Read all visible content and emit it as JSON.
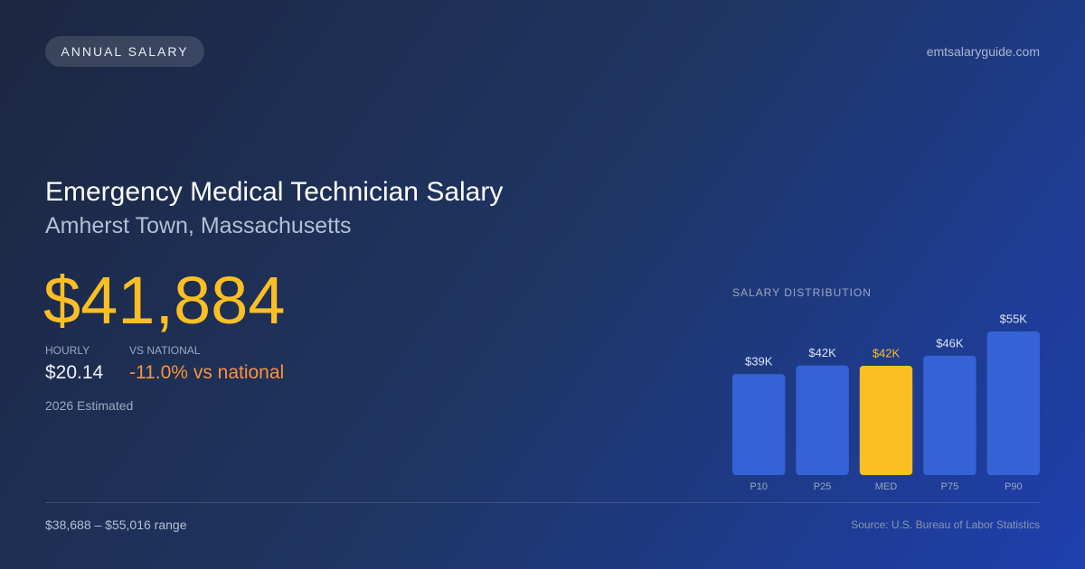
{
  "header": {
    "badge": "ANNUAL SALARY",
    "site": "emtsalaryguide.com"
  },
  "main": {
    "title": "Emergency Medical Technician Salary",
    "subtitle": "Amherst Town, Massachusetts",
    "salary": "$41,884",
    "hourly_label": "HOURLY",
    "hourly_value": "$20.14",
    "national_label": "VS NATIONAL",
    "national_value": "-11.0% vs national",
    "note": "2026 Estimated"
  },
  "chart_data": {
    "type": "bar",
    "title": "SALARY DISTRIBUTION",
    "categories": [
      "P10",
      "P25",
      "MED",
      "P75",
      "P90"
    ],
    "values": [
      38688,
      42000,
      41884,
      45700,
      55016
    ],
    "value_labels": [
      "$39K",
      "$42K",
      "$42K",
      "$46K",
      "$55K"
    ],
    "colors": [
      "#3563d6",
      "#3563d6",
      "#fbbf24",
      "#3563d6",
      "#3563d6"
    ],
    "label_colors": [
      "#dbe3f3",
      "#dbe3f3",
      "#fbbf24",
      "#dbe3f3",
      "#dbe3f3"
    ]
  },
  "footer": {
    "range": "$38,688 – $55,016 range",
    "source": "Source: U.S. Bureau of Labor Statistics"
  }
}
